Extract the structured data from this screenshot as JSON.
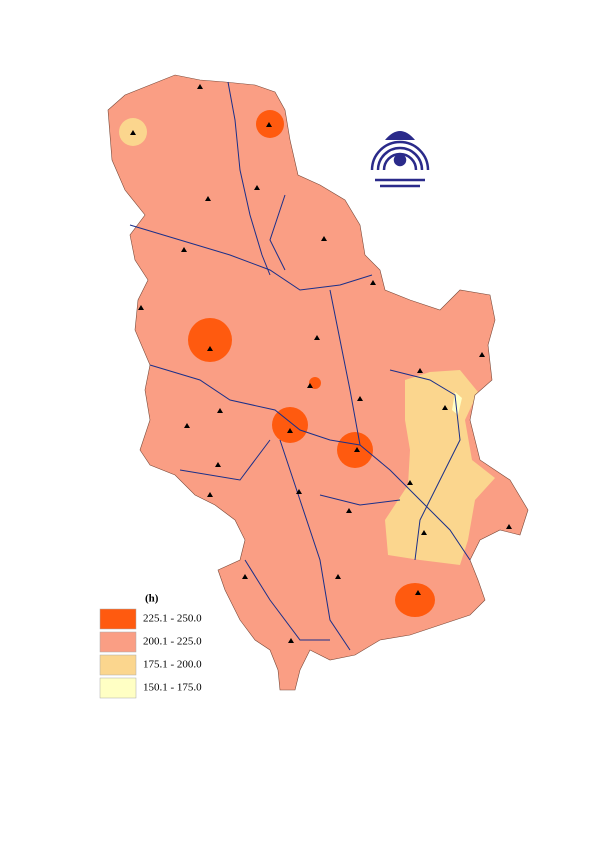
{
  "legend": {
    "title": "(h)",
    "items": [
      {
        "label": "225.1 - 250.0",
        "color": "#ff5a0f"
      },
      {
        "label": "200.1 - 225.0",
        "color": "#fa9e84"
      },
      {
        "label": "175.1 - 200.0",
        "color": "#fbd68e"
      },
      {
        "label": "150.1 - 175.0",
        "color": "#ffffc4"
      }
    ]
  }
}
